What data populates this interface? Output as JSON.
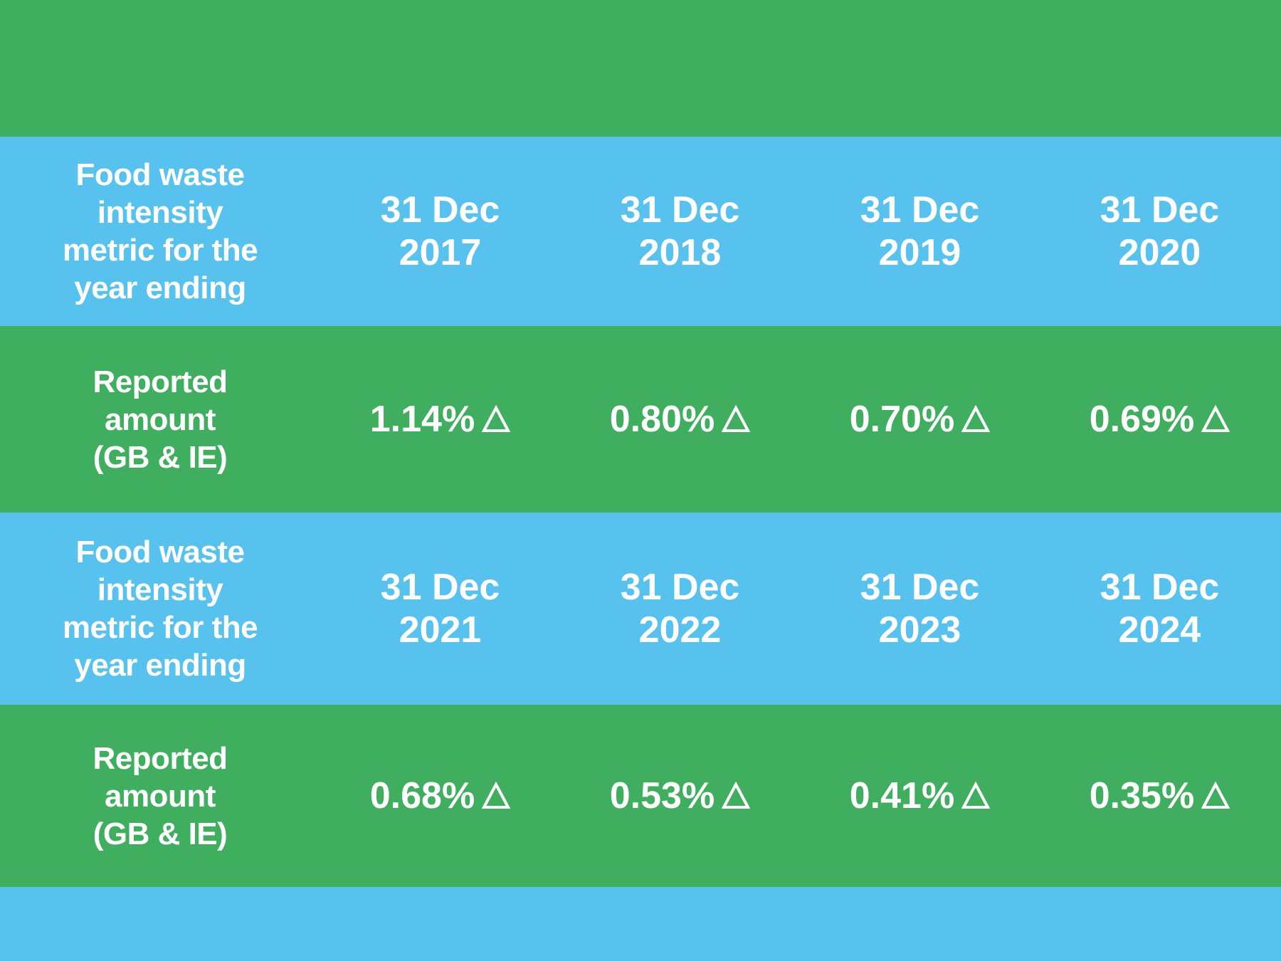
{
  "colors": {
    "green": "#3FAE5E",
    "blue": "#58C2EF",
    "text": "#FFFFFF"
  },
  "table": {
    "blocks": [
      {
        "header_label": "Food waste intensity metric for the year ending",
        "dates": [
          "31 Dec 2017",
          "31 Dec 2018",
          "31 Dec 2019",
          "31 Dec 2020"
        ],
        "value_label": "Reported amount (GB & IE)",
        "values": [
          "1.14%",
          "0.80%",
          "0.70%",
          "0.69%"
        ]
      },
      {
        "header_label": "Food waste intensity metric for the year ending",
        "dates": [
          "31 Dec 2021",
          "31 Dec 2022",
          "31 Dec 2023",
          "31 Dec 2024"
        ],
        "value_label": "Reported amount (GB & IE)",
        "values": [
          "0.68%",
          "0.53%",
          "0.41%",
          "0.35%"
        ]
      }
    ],
    "value_marker_icon": "triangle-outline-icon"
  }
}
